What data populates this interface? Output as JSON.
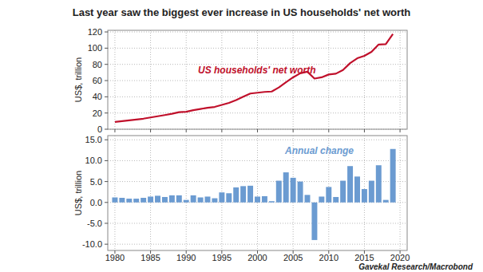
{
  "chart_data": [
    {
      "type": "line",
      "title": "Last year saw the biggest ever increase in US households' net worth",
      "y_label": "US$, trillion",
      "x": [
        1980,
        1981,
        1982,
        1983,
        1984,
        1985,
        1986,
        1987,
        1988,
        1989,
        1990,
        1991,
        1992,
        1993,
        1994,
        1995,
        1996,
        1997,
        1998,
        1999,
        2000,
        2001,
        2002,
        2003,
        2004,
        2005,
        2006,
        2007,
        2008,
        2009,
        2010,
        2011,
        2012,
        2013,
        2014,
        2015,
        2016,
        2017,
        2018,
        2019
      ],
      "series": [
        {
          "name": "US households' net worth",
          "color": "#c0102b",
          "values": [
            9,
            10,
            11,
            12,
            13,
            14.5,
            16,
            17.5,
            19,
            21,
            21.5,
            23.5,
            25,
            26.5,
            27.5,
            30,
            32.5,
            36,
            40,
            44,
            45,
            46,
            46.5,
            51.5,
            58,
            64,
            69,
            71,
            62.5,
            64,
            67.5,
            68.5,
            73,
            81.5,
            87.5,
            90.5,
            95.5,
            104.5,
            105,
            117.5
          ]
        }
      ],
      "xlim": [
        1979,
        2021
      ],
      "xticks": [
        1980,
        1985,
        1990,
        1995,
        2000,
        2005,
        2010,
        2015,
        2020
      ],
      "ylim": [
        0,
        122
      ],
      "yticks": [
        0,
        20,
        40,
        60,
        80,
        100,
        120
      ],
      "grid": true,
      "tick_labels": "y"
    },
    {
      "type": "bar",
      "y_label": "US$, trillion",
      "source": "Gavekal Research/Macrobond",
      "x": [
        1980,
        1981,
        1982,
        1983,
        1984,
        1985,
        1986,
        1987,
        1988,
        1989,
        1990,
        1991,
        1992,
        1993,
        1994,
        1995,
        1996,
        1997,
        1998,
        1999,
        2000,
        2001,
        2002,
        2003,
        2004,
        2005,
        2006,
        2007,
        2008,
        2009,
        2010,
        2011,
        2012,
        2013,
        2014,
        2015,
        2016,
        2017,
        2018,
        2019
      ],
      "series": [
        {
          "name": "Annual change",
          "color": "#6b9bd1",
          "values": [
            1.2,
            1.1,
            0.9,
            0.9,
            1.1,
            1.4,
            1.6,
            1.3,
            1.7,
            1.7,
            0.6,
            1.7,
            1.2,
            1.4,
            1.0,
            2.4,
            2.2,
            3.6,
            3.9,
            4.0,
            1.4,
            1.5,
            0.3,
            5.2,
            7.2,
            5.9,
            5.0,
            1.8,
            -9.0,
            1.4,
            3.7,
            1.3,
            5.2,
            8.7,
            6.2,
            3.2,
            5.2,
            8.9,
            0.6,
            12.8
          ]
        }
      ],
      "xlim": [
        1979,
        2021
      ],
      "xticks": [
        1980,
        1985,
        1990,
        1995,
        2000,
        2005,
        2010,
        2015,
        2020
      ],
      "ylim": [
        -11.5,
        16
      ],
      "yticks": [
        {
          "value": -10,
          "label": "-10.0"
        },
        {
          "value": -5,
          "label": "-5.0"
        },
        {
          "value": 0,
          "label": "0.0"
        },
        {
          "value": 5,
          "label": "5.0"
        },
        {
          "value": 10,
          "label": "10.0"
        },
        {
          "value": 15,
          "label": "15.0"
        }
      ],
      "grid": true
    }
  ]
}
